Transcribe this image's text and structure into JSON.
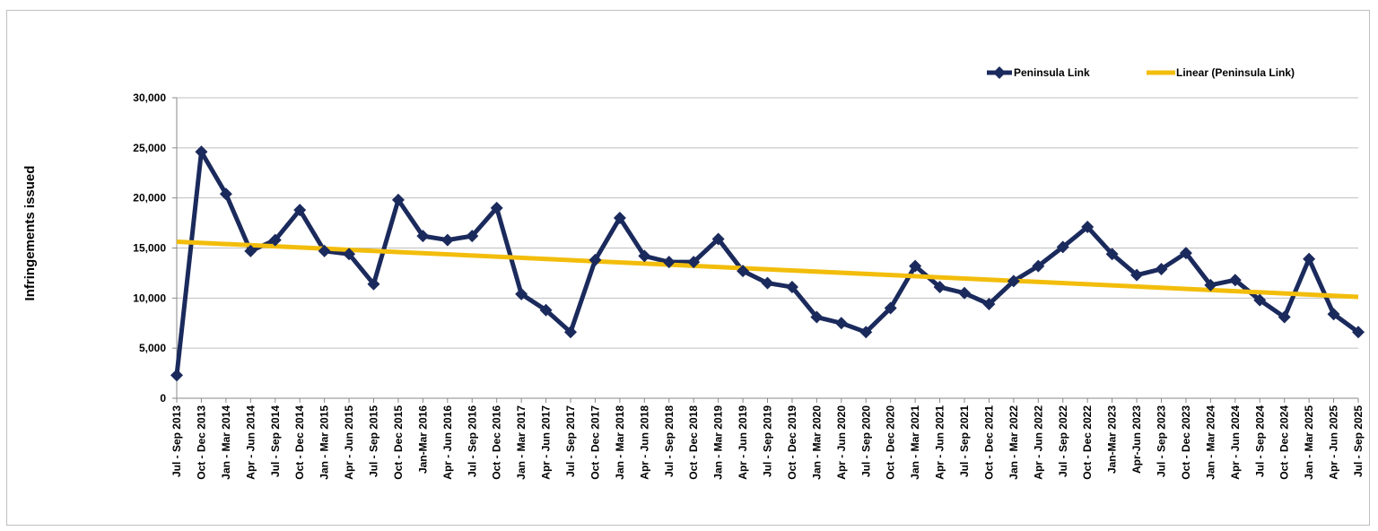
{
  "chart_data": {
    "type": "line",
    "title": "",
    "xlabel": "",
    "ylabel": "Infringements issued",
    "ylim": [
      0,
      30000
    ],
    "yticks": [
      "0",
      "5,000",
      "10,000",
      "15,000",
      "20,000",
      "25,000",
      "30,000"
    ],
    "ytick_values": [
      0,
      5000,
      10000,
      15000,
      20000,
      25000,
      30000
    ],
    "grid": "horizontal",
    "legend_placement": "top-right",
    "categories": [
      "Jul - Sep 2013",
      "Oct - Dec 2013",
      "Jan - Mar 2014",
      "Apr - Jun 2014",
      "Jul - Sep 2014",
      "Oct - Dec 2014",
      "Jan - Mar 2015",
      "Apr - Jun 2015",
      "Jul - Sep 2015",
      "Oct - Dec 2015",
      "Jan-Mar 2016",
      "Apr - Jun 2016",
      "Jul - Sep 2016",
      "Oct - Dec 2016",
      "Jan - Mar 2017",
      "Apr - Jun 2017",
      "Jul - Sep 2017",
      "Oct - Dec 2017",
      "Jan - Mar 2018",
      "Apr - Jun 2018",
      "Jul - Sep 2018",
      "Oct - Dec 2018",
      "Jan - Mar 2019",
      "Apr - Jun 2019",
      "Jul - Sep 2019",
      "Oct - Dec 2019",
      "Jan - Mar 2020",
      "Apr - Jun 2020",
      "Jul - Sep 2020",
      "Oct - Dec 2020",
      "Jan - Mar 2021",
      "Apr - Jun 2021",
      "Jul - Sep 2021",
      "Oct - Dec 2021",
      "Jan - Mar 2022",
      "Apr - Jun 2022",
      "Jul - Sep 2022",
      "Oct - Dec 2022",
      "Jan-Mar 2023",
      "Apr-Jun 2023",
      "Jul - Sep 2023",
      "Oct - Dec 2023",
      "Jan - Mar 2024",
      "Apr - Jun 2024",
      "Jul - Sep 2024",
      "Oct - Dec 2024",
      "Jan - Mar 2025",
      "Apr - Jun 2025",
      "Jul - Sep 2025"
    ],
    "series": [
      {
        "name": "Peninsula Link",
        "color": "#1b2a5c",
        "marker": "diamond",
        "values": [
          2300,
          24600,
          20400,
          14700,
          15800,
          18800,
          14700,
          14400,
          11400,
          19800,
          16200,
          15800,
          16200,
          19000,
          10400,
          8800,
          6600,
          13800,
          18000,
          14200,
          13600,
          13600,
          15900,
          12700,
          11500,
          11100,
          8100,
          7500,
          6600,
          9000,
          13200,
          11100,
          10500,
          9400,
          11700,
          13200,
          15100,
          17100,
          14400,
          12300,
          12900,
          14500,
          11300,
          11800,
          9800,
          8100,
          13900,
          8400,
          6600
        ]
      },
      {
        "name": "Linear (Peninsula Link)",
        "color": "#f2bd0b",
        "type": "trendline",
        "of": "Peninsula Link"
      }
    ]
  }
}
